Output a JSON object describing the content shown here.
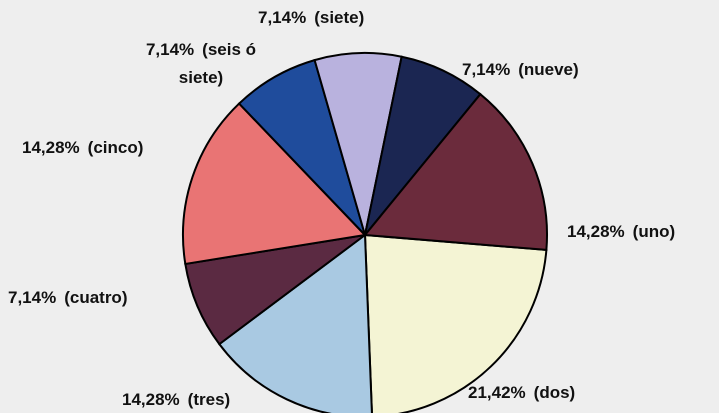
{
  "chart_data": {
    "type": "pie",
    "categories": [
      "(dos)",
      "(tres)",
      "(cuatro)",
      "(cinco)",
      "(seis ó siete)",
      "(siete)",
      "(nueve)",
      "(uno)"
    ],
    "values": [
      21.42,
      14.28,
      7.14,
      14.28,
      7.14,
      7.14,
      7.14,
      14.28
    ],
    "value_labels": [
      "21,42%",
      "14,28%",
      "7,14%",
      "14,28%",
      "7,14%",
      "7,14%",
      "7,14%",
      "14,28%"
    ],
    "colors": [
      "#f4f4d4",
      "#a9c9e2",
      "#5b2a42",
      "#e97474",
      "#1f4c9c",
      "#b9b2de",
      "#1b2652",
      "#6b2b3c"
    ]
  }
}
